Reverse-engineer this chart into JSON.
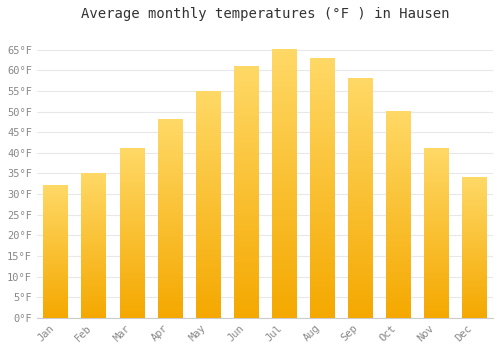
{
  "title": "Average monthly temperatures (°F ) in Hausen",
  "months": [
    "Jan",
    "Feb",
    "Mar",
    "Apr",
    "May",
    "Jun",
    "Jul",
    "Aug",
    "Sep",
    "Oct",
    "Nov",
    "Dec"
  ],
  "values": [
    32,
    35,
    41,
    48,
    55,
    61,
    65,
    63,
    58,
    50,
    41,
    34
  ],
  "bar_color_dark": "#F5A800",
  "bar_color_light": "#FFD966",
  "ylim": [
    0,
    70
  ],
  "yticks": [
    0,
    5,
    10,
    15,
    20,
    25,
    30,
    35,
    40,
    45,
    50,
    55,
    60,
    65
  ],
  "ytick_labels": [
    "0°F",
    "5°F",
    "10°F",
    "15°F",
    "20°F",
    "25°F",
    "30°F",
    "35°F",
    "40°F",
    "45°F",
    "50°F",
    "55°F",
    "60°F",
    "65°F"
  ],
  "background_color": "#ffffff",
  "grid_color": "#e8e8e8",
  "title_fontsize": 10,
  "tick_fontsize": 7.5,
  "bar_width": 0.65,
  "figsize": [
    5.0,
    3.5
  ],
  "dpi": 100
}
